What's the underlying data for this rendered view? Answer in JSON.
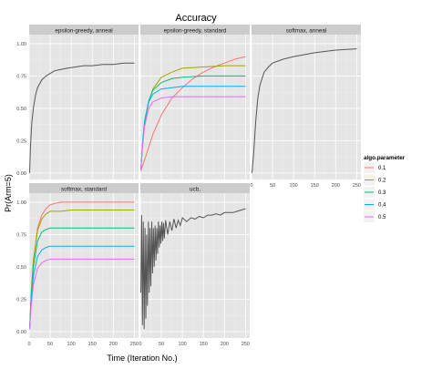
{
  "chart_data": {
    "type": "line",
    "title": "Accuracy",
    "xlabel": "Time (Iteration No.)",
    "ylabel": "Pr(Arm=5)",
    "xlim": [
      0,
      260
    ],
    "ylim": [
      0,
      1
    ],
    "x_ticks": [
      0,
      50,
      100,
      150,
      200,
      250
    ],
    "y_ticks": [
      0.0,
      0.25,
      0.5,
      0.75,
      1.0
    ],
    "x_tick_labels": [
      "0",
      "50",
      "100",
      "150",
      "200",
      "250"
    ],
    "y_tick_labels": [
      "0.00",
      "0.25",
      "0.50",
      "0.75",
      "1.00"
    ],
    "grid": true,
    "legend": {
      "title": "algo.parameter",
      "placement": "right",
      "entries": [
        {
          "label": "0.1",
          "color": "#F8766D"
        },
        {
          "label": "0.2",
          "color": "#A3A500"
        },
        {
          "label": "0.3",
          "color": "#00BF7D"
        },
        {
          "label": "0.4",
          "color": "#00B0F6"
        },
        {
          "label": "0.5",
          "color": "#E76BF3"
        }
      ]
    },
    "panel_colors": {
      "background": "#E5E5E5",
      "strip": "#CCCCCC",
      "grid": "#FFFFFF",
      "single_series": "#555555"
    },
    "panels": [
      {
        "strip": "epsilon-greedy, anneal",
        "series": [
          {
            "color": "#555555",
            "x": [
              1,
              3,
              6,
              10,
              15,
              20,
              30,
              40,
              50,
              60,
              75,
              90,
              110,
              130,
              150,
              175,
              200,
              225,
              250
            ],
            "y": [
              0.0,
              0.2,
              0.38,
              0.5,
              0.6,
              0.66,
              0.72,
              0.75,
              0.77,
              0.79,
              0.8,
              0.81,
              0.82,
              0.83,
              0.83,
              0.84,
              0.84,
              0.85,
              0.85
            ]
          }
        ]
      },
      {
        "strip": "epsilon-greedy, standard",
        "series": [
          {
            "label": "0.1",
            "color": "#F8766D",
            "x": [
              1,
              10,
              20,
              30,
              50,
              75,
              100,
              125,
              150,
              175,
              200,
              225,
              250
            ],
            "y": [
              0.02,
              0.1,
              0.2,
              0.3,
              0.45,
              0.58,
              0.66,
              0.73,
              0.78,
              0.82,
              0.85,
              0.88,
              0.9
            ]
          },
          {
            "label": "0.2",
            "color": "#A3A500",
            "x": [
              1,
              5,
              10,
              20,
              30,
              50,
              75,
              100,
              150,
              200,
              250
            ],
            "y": [
              0.02,
              0.2,
              0.38,
              0.55,
              0.65,
              0.74,
              0.78,
              0.81,
              0.82,
              0.83,
              0.83
            ]
          },
          {
            "label": "0.3",
            "color": "#00BF7D",
            "x": [
              1,
              5,
              10,
              20,
              30,
              50,
              75,
              100,
              150,
              200,
              250
            ],
            "y": [
              0.02,
              0.22,
              0.4,
              0.56,
              0.64,
              0.7,
              0.73,
              0.74,
              0.75,
              0.75,
              0.75
            ]
          },
          {
            "label": "0.4",
            "color": "#00B0F6",
            "x": [
              1,
              5,
              10,
              20,
              30,
              50,
              75,
              100,
              150,
              200,
              250
            ],
            "y": [
              0.02,
              0.22,
              0.4,
              0.55,
              0.61,
              0.65,
              0.66,
              0.67,
              0.67,
              0.67,
              0.67
            ]
          },
          {
            "label": "0.5",
            "color": "#E76BF3",
            "x": [
              1,
              5,
              10,
              20,
              30,
              50,
              75,
              100,
              150,
              200,
              250
            ],
            "y": [
              0.02,
              0.2,
              0.36,
              0.5,
              0.55,
              0.58,
              0.59,
              0.59,
              0.59,
              0.59,
              0.59
            ]
          }
        ]
      },
      {
        "strip": "softmax, anneal",
        "series": [
          {
            "color": "#555555",
            "x": [
              1,
              5,
              10,
              15,
              20,
              30,
              40,
              50,
              75,
              100,
              150,
              200,
              250
            ],
            "y": [
              0.0,
              0.15,
              0.4,
              0.58,
              0.68,
              0.78,
              0.82,
              0.85,
              0.88,
              0.9,
              0.93,
              0.95,
              0.96
            ]
          }
        ]
      },
      {
        "strip": "softmax, standard",
        "series": [
          {
            "label": "0.1",
            "color": "#F8766D",
            "x": [
              1,
              5,
              10,
              20,
              30,
              40,
              50,
              60,
              75,
              100,
              150,
              200,
              250
            ],
            "y": [
              0.02,
              0.3,
              0.55,
              0.8,
              0.9,
              0.95,
              0.98,
              0.99,
              1.0,
              1.0,
              1.0,
              1.0,
              1.0
            ]
          },
          {
            "label": "0.2",
            "color": "#A3A500",
            "x": [
              1,
              5,
              10,
              20,
              30,
              40,
              50,
              75,
              100,
              150,
              200,
              250
            ],
            "y": [
              0.02,
              0.3,
              0.55,
              0.78,
              0.87,
              0.91,
              0.93,
              0.93,
              0.94,
              0.94,
              0.94,
              0.94
            ]
          },
          {
            "label": "0.3",
            "color": "#00BF7D",
            "x": [
              1,
              5,
              10,
              20,
              30,
              40,
              50,
              75,
              100,
              150,
              200,
              250
            ],
            "y": [
              0.02,
              0.28,
              0.5,
              0.7,
              0.77,
              0.79,
              0.8,
              0.8,
              0.8,
              0.8,
              0.8,
              0.8
            ]
          },
          {
            "label": "0.4",
            "color": "#00B0F6",
            "x": [
              1,
              5,
              10,
              20,
              30,
              40,
              50,
              75,
              100,
              150,
              200,
              250
            ],
            "y": [
              0.02,
              0.24,
              0.43,
              0.58,
              0.63,
              0.65,
              0.66,
              0.66,
              0.66,
              0.66,
              0.66,
              0.66
            ]
          },
          {
            "label": "0.5",
            "color": "#E76BF3",
            "x": [
              1,
              5,
              10,
              20,
              30,
              40,
              50,
              75,
              100,
              150,
              200,
              250
            ],
            "y": [
              0.02,
              0.2,
              0.36,
              0.49,
              0.53,
              0.55,
              0.56,
              0.56,
              0.56,
              0.56,
              0.56,
              0.56
            ]
          }
        ]
      },
      {
        "strip": "ucb,",
        "series": [
          {
            "color": "#555555",
            "x": [
              1,
              3,
              5,
              7,
              9,
              11,
              13,
              15,
              17,
              19,
              21,
              23,
              25,
              27,
              29,
              31,
              33,
              35,
              37,
              39,
              41,
              43,
              45,
              47,
              49,
              51,
              53,
              55,
              57,
              60,
              65,
              70,
              75,
              80,
              85,
              90,
              95,
              100,
              110,
              120,
              130,
              140,
              150,
              160,
              170,
              180,
              190,
              200,
              210,
              220,
              230,
              240,
              250
            ],
            "y": [
              0.3,
              0.9,
              0.05,
              0.85,
              0.02,
              0.8,
              0.1,
              0.75,
              0.2,
              0.85,
              0.3,
              0.8,
              0.35,
              0.85,
              0.45,
              0.8,
              0.5,
              0.82,
              0.55,
              0.8,
              0.6,
              0.85,
              0.65,
              0.82,
              0.68,
              0.85,
              0.7,
              0.84,
              0.72,
              0.86,
              0.75,
              0.85,
              0.78,
              0.87,
              0.8,
              0.86,
              0.82,
              0.88,
              0.85,
              0.88,
              0.87,
              0.89,
              0.88,
              0.9,
              0.9,
              0.91,
              0.9,
              0.92,
              0.92,
              0.92,
              0.93,
              0.94,
              0.95
            ]
          }
        ]
      }
    ]
  }
}
